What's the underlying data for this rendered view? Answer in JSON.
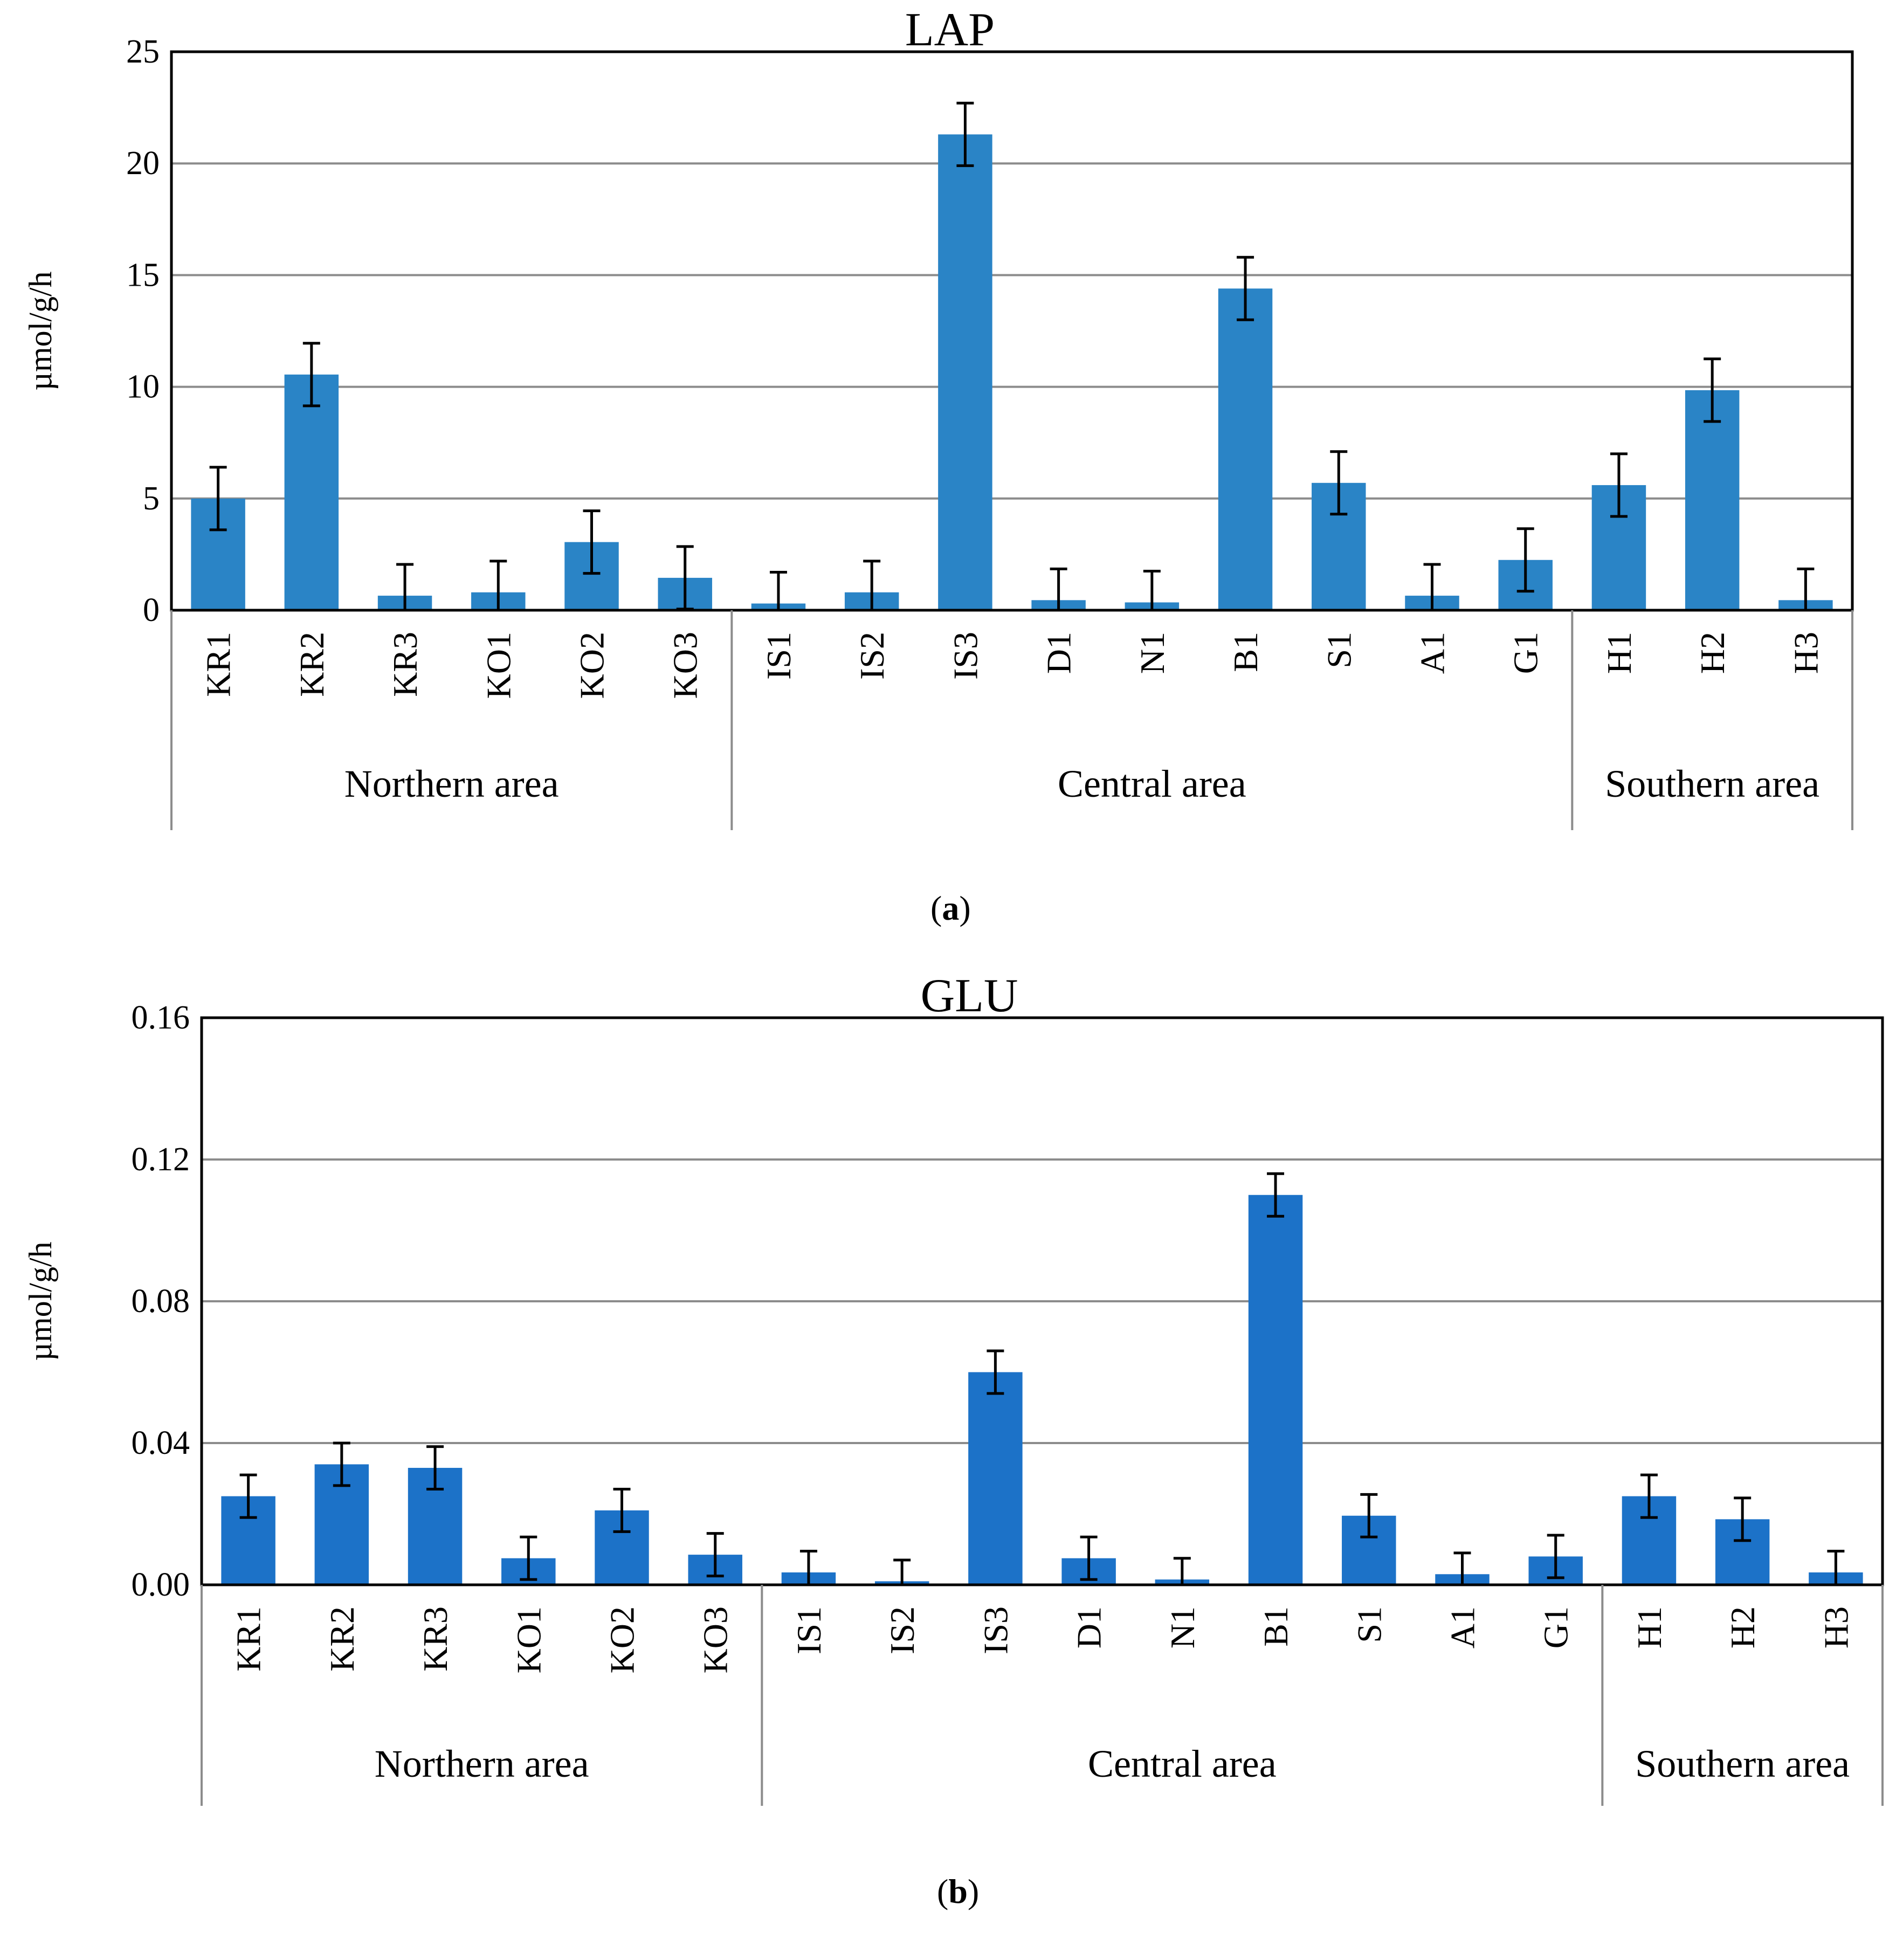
{
  "chart_data": [
    {
      "type": "bar",
      "title": "LAP",
      "caption_letter": "a",
      "ylabel": "µmol/g/h",
      "xlabel": "",
      "ylim": [
        0,
        25
      ],
      "y_ticks": [
        "0",
        "5",
        "10",
        "15",
        "20",
        "25"
      ],
      "y_tick_values": [
        0,
        5,
        10,
        15,
        20,
        25
      ],
      "grid": true,
      "bar_color": "#2A84C6",
      "categories": [
        "KR1",
        "KR2",
        "KR3",
        "KO1",
        "KO2",
        "KO3",
        "IS1",
        "IS2",
        "IS3",
        "D1",
        "N1",
        "B1",
        "S1",
        "A1",
        "G1",
        "H1",
        "H2",
        "H3"
      ],
      "values": [
        5.0,
        10.55,
        0.65,
        0.8,
        3.05,
        1.45,
        0.3,
        0.8,
        21.3,
        0.45,
        0.35,
        14.4,
        5.7,
        0.65,
        2.25,
        5.6,
        9.85,
        0.45
      ],
      "errors": [
        1.4,
        1.4,
        1.4,
        1.4,
        1.4,
        1.4,
        1.4,
        1.4,
        1.4,
        1.4,
        1.4,
        1.4,
        1.4,
        1.4,
        1.4,
        1.4,
        1.4,
        1.4
      ],
      "groups": [
        {
          "label": "Northern area",
          "start": 0,
          "end": 5
        },
        {
          "label": "Central area",
          "start": 6,
          "end": 14
        },
        {
          "label": "Southern area",
          "start": 15,
          "end": 17
        }
      ]
    },
    {
      "type": "bar",
      "title": "GLU",
      "caption_letter": "b",
      "ylabel": "µmol/g/h",
      "xlabel": "",
      "ylim": [
        0,
        0.16
      ],
      "y_ticks": [
        "0.00",
        "0.04",
        "0.08",
        "0.12",
        "0.16"
      ],
      "y_tick_values": [
        0,
        0.04,
        0.08,
        0.12,
        0.16
      ],
      "grid": true,
      "bar_color": "#1C72C8",
      "categories": [
        "KR1",
        "KR2",
        "KR3",
        "KO1",
        "KO2",
        "KO3",
        "IS1",
        "IS2",
        "IS3",
        "D1",
        "N1",
        "B1",
        "S1",
        "A1",
        "G1",
        "H1",
        "H2",
        "H3"
      ],
      "values": [
        0.025,
        0.034,
        0.033,
        0.0075,
        0.021,
        0.0085,
        0.0035,
        0.001,
        0.06,
        0.0075,
        0.0015,
        0.11,
        0.0195,
        0.003,
        0.008,
        0.025,
        0.0185,
        0.0035
      ],
      "errors": [
        0.006,
        0.006,
        0.006,
        0.006,
        0.006,
        0.006,
        0.006,
        0.006,
        0.006,
        0.006,
        0.006,
        0.006,
        0.006,
        0.006,
        0.006,
        0.006,
        0.006,
        0.006
      ],
      "groups": [
        {
          "label": "Northern area",
          "start": 0,
          "end": 5
        },
        {
          "label": "Central area",
          "start": 6,
          "end": 14
        },
        {
          "label": "Southern area",
          "start": 15,
          "end": 17
        }
      ]
    }
  ]
}
